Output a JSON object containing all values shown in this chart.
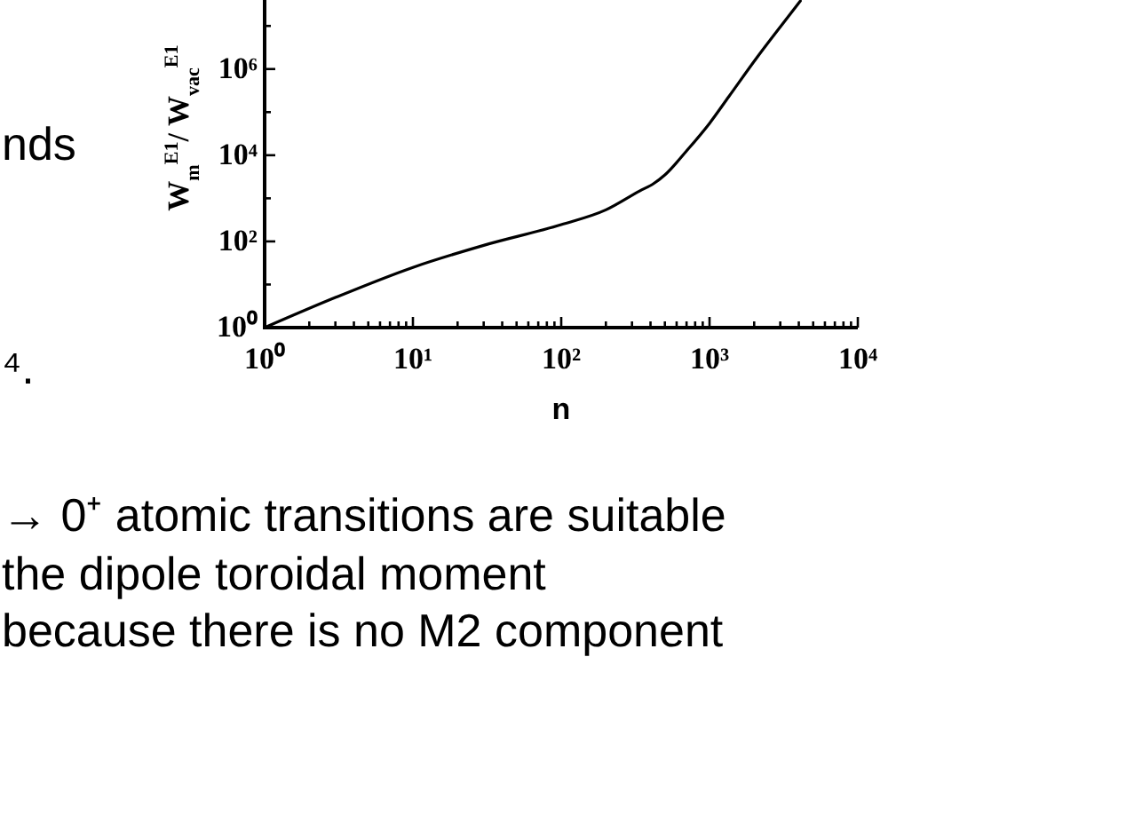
{
  "chart_data": {
    "type": "line",
    "xlabel": "n",
    "ylabel": "W$_{m}$$^{E1}$/ W$_{vac}$$^{E1}$",
    "annotations": [
      "nds",
      "⁴.",
      "→ 0⁺ atomic transitions are suitable",
      "the dipole toroidal moment",
      "because there is no M2 component"
    ],
    "x": [
      1,
      3,
      10,
      30,
      100,
      200,
      340,
      420,
      500,
      700,
      1000,
      1350,
      2100,
      3100,
      4100
    ],
    "values": [
      1,
      5,
      25,
      81,
      245,
      540,
      1500,
      2200,
      3500,
      12600,
      55000,
      230000,
      1900000,
      11000000,
      38000000
    ],
    "color": "#000000",
    "log": "xy",
    "xlim": [
      1,
      10000
    ],
    "ylim": [
      1,
      40000000
    ],
    "xticks": [
      {
        "value": 1,
        "label": "10⁰"
      },
      {
        "value": 2,
        "label": null
      },
      {
        "value": 3,
        "label": null
      },
      {
        "value": 4,
        "label": null
      },
      {
        "value": 5,
        "label": null
      },
      {
        "value": 6,
        "label": null
      },
      {
        "value": 7,
        "label": null
      },
      {
        "value": 8,
        "label": null
      },
      {
        "value": 9,
        "label": null
      },
      {
        "value": 10,
        "label": "10¹"
      },
      {
        "value": 20,
        "label": null
      },
      {
        "value": 30,
        "label": null
      },
      {
        "value": 40,
        "label": null
      },
      {
        "value": 50,
        "label": null
      },
      {
        "value": 60,
        "label": null
      },
      {
        "value": 70,
        "label": null
      },
      {
        "value": 80,
        "label": null
      },
      {
        "value": 90,
        "label": null
      },
      {
        "value": 100,
        "label": "10²"
      },
      {
        "value": 200,
        "label": null
      },
      {
        "value": 300,
        "label": null
      },
      {
        "value": 400,
        "label": null
      },
      {
        "value": 500,
        "label": null
      },
      {
        "value": 600,
        "label": null
      },
      {
        "value": 700,
        "label": null
      },
      {
        "value": 800,
        "label": null
      },
      {
        "value": 900,
        "label": null
      },
      {
        "value": 1000,
        "label": "10³"
      },
      {
        "value": 2000,
        "label": null
      },
      {
        "value": 3000,
        "label": null
      },
      {
        "value": 4000,
        "label": null
      },
      {
        "value": 5000,
        "label": null
      },
      {
        "value": 6000,
        "label": null
      },
      {
        "value": 7000,
        "label": null
      },
      {
        "value": 8000,
        "label": null
      },
      {
        "value": 9000,
        "label": null
      },
      {
        "value": 10000,
        "label": "10⁴"
      }
    ],
    "yticks": [
      {
        "value": 1,
        "label": "10⁰"
      },
      {
        "value": 10,
        "label": null
      },
      {
        "value": 100,
        "label": "10²"
      },
      {
        "value": 1000,
        "label": null
      },
      {
        "value": 10000,
        "label": "10⁴"
      },
      {
        "value": 100000,
        "label": null
      },
      {
        "value": 1000000,
        "label": "10⁶"
      },
      {
        "value": 10000000,
        "label": null
      }
    ]
  }
}
